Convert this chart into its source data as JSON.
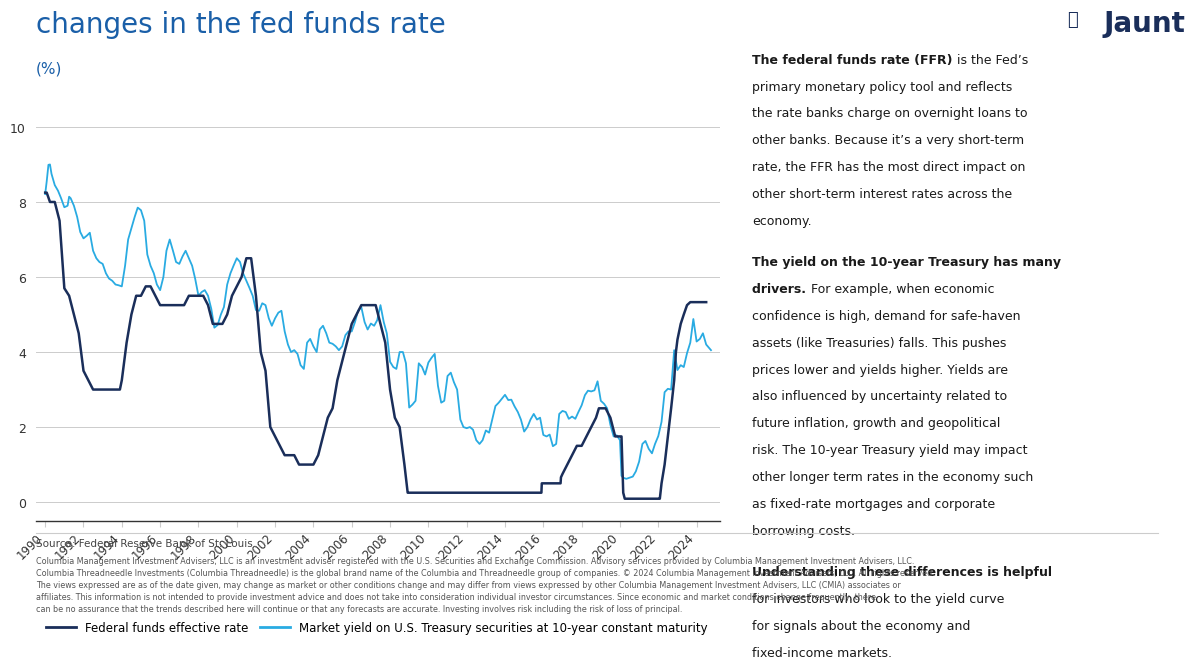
{
  "title": "changes in the fed funds rate",
  "subtitle": "(%)",
  "bg_color": "#ffffff",
  "title_color": "#1a5fa8",
  "ffr_color": "#1a2e5a",
  "treasury_color": "#29abe2",
  "ylim": [
    -0.5,
    10.5
  ],
  "yticks": [
    0,
    2,
    4,
    6,
    8,
    10
  ],
  "legend_label_ffr": "Federal funds effective rate",
  "legend_label_treasury": "Market yield on U.S. Treasury securities at 10-year constant maturity",
  "source_text": "Source: Federal Reserve Bank of St. Louis",
  "disclaimer": "Columbia Management Investment Advisers, LLC is an investment adviser registered with the U.S. Securities and Exchange Commission. Advisory services provided by Columbia Management Investment Advisers, LLC. Columbia Threadneedle Investments (Columbia Threadneedle) is the global brand name of the Columbia and Threadneedle group of companies. © 2024 Columbia Management Investment Advisers, LLC. All rights reserved. The views expressed are as of the date given, may change as market or other conditions change and may differ from views expressed by other Columbia Management Investment Advisers, LLC (CMIA) associates or affiliates. This information is not intended to provide investment advice and does not take into consideration individual investor circumstances. Since economic and market conditions change frequently, there can be no assurance that the trends described here will continue or that any forecasts are accurate. Investing involves risk including the risk of loss of principal.",
  "right_panel_paragraphs": [
    {
      "bold_part": "The federal funds rate (FFR)",
      "normal_part": " is the Fed’s primary monetary policy tool and reflects the rate banks charge on overnight loans to other banks. Because it’s a very short-term rate, the FFR has the most direct impact on other short-term interest rates across the economy."
    },
    {
      "bold_part": "The yield on the 10-year Treasury has many drivers.",
      "normal_part": " For example, when economic confidence is high, demand for safe-haven assets (like Treasuries) falls. This pushes prices lower and yields higher. Yields are also influenced by uncertainty related to future inflation, growth and geopolitical risk. The 10-year Treasury yield may impact other longer term rates in the economy such as fixed-rate mortgages and corporate borrowing costs."
    },
    {
      "bold_part": "Understanding these differences is helpful",
      "normal_part": " for investors who look to the yield curve for signals about the economy and fixed-income markets."
    }
  ]
}
